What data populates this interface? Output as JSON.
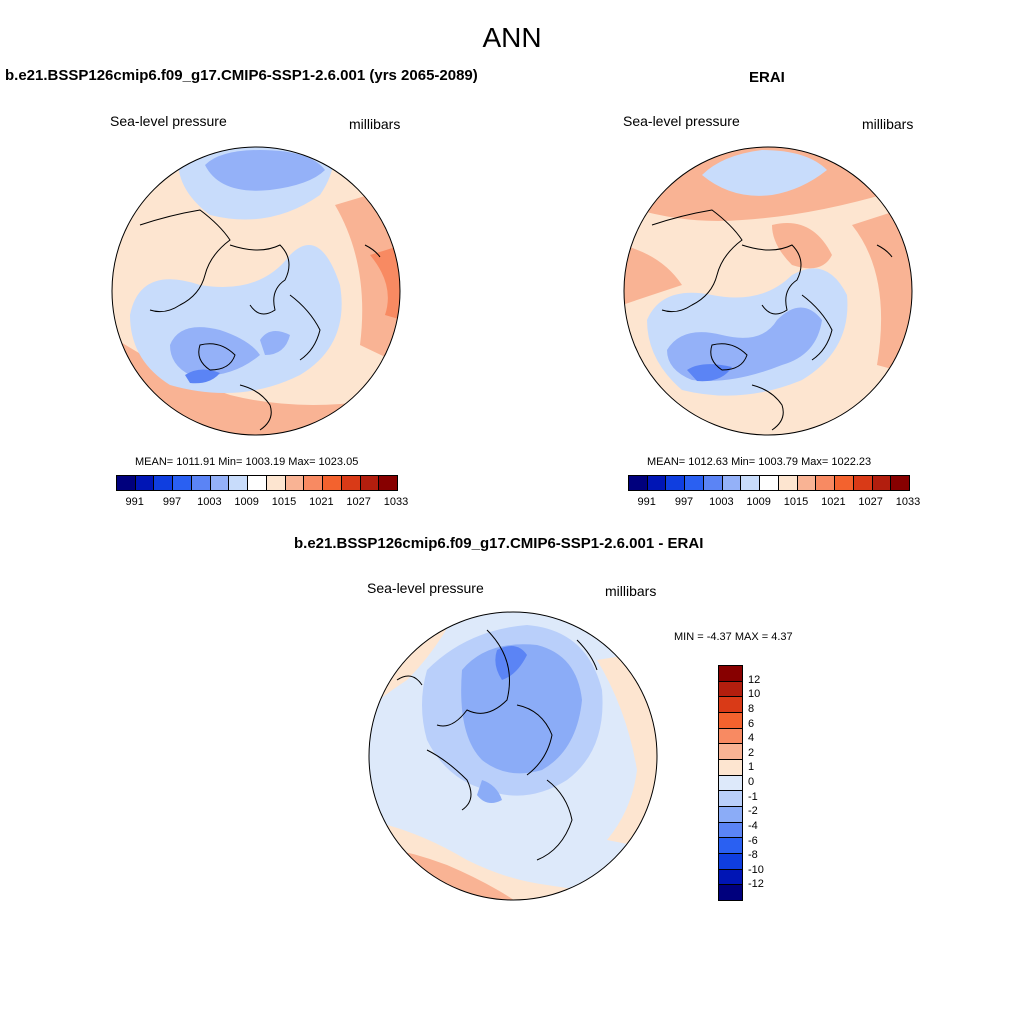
{
  "figure": {
    "title": "ANN"
  },
  "panel_model": {
    "title": "b.e21.BSSP126cmip6.f09_g17.CMIP6-SSP1-2.6.001 (yrs 2065-2089)",
    "variable": "Sea-level pressure",
    "units": "millibars",
    "stats": "MEAN= 1011.91  Min= 1003.19  Max= 1023.05"
  },
  "panel_obs": {
    "title": "ERAI",
    "variable": "Sea-level pressure",
    "units": "millibars",
    "stats": "MEAN= 1012.63  Min= 1003.79  Max= 1022.23"
  },
  "panel_diff": {
    "title": "b.e21.BSSP126cmip6.f09_g17.CMIP6-SSP1-2.6.001 - ERAI",
    "variable": "Sea-level pressure",
    "units": "millibars",
    "stats": "MIN =  -4.37 MAX =   4.37"
  },
  "colorbar_abs": {
    "colors": [
      "#00007d",
      "#0015b5",
      "#0f3ee0",
      "#2a60f2",
      "#5b84f5",
      "#94b1f8",
      "#c8dcfb",
      "#ffffff",
      "#fde5d0",
      "#f9b394",
      "#f88a62",
      "#f3622e",
      "#d93a17",
      "#b21e0e",
      "#870000"
    ],
    "tick_labels": [
      "991",
      "997",
      "1003",
      "1009",
      "1015",
      "1021",
      "1027",
      "1033"
    ]
  },
  "colorbar_diff": {
    "colors": [
      "#870000",
      "#b21e0e",
      "#d93a17",
      "#f3622e",
      "#f88a62",
      "#f9b394",
      "#fde5d0",
      "#dde9fa",
      "#b9cffa",
      "#8bacf7",
      "#5b84f5",
      "#2a60f2",
      "#0f3ee0",
      "#0015b5",
      "#00007d"
    ],
    "tick_labels": [
      "12",
      "10",
      "8",
      "6",
      "4",
      "2",
      "1",
      "0",
      "-1",
      "-2",
      "-4",
      "-6",
      "-8",
      "-10",
      "-12"
    ]
  },
  "map_colors": {
    "deep_blue": "#5b84f5",
    "mid_blue": "#94b1f8",
    "light_blue": "#c8dcfb",
    "pale": "#fde5d0",
    "light_red": "#f9b394",
    "mid_red": "#f88a62"
  }
}
